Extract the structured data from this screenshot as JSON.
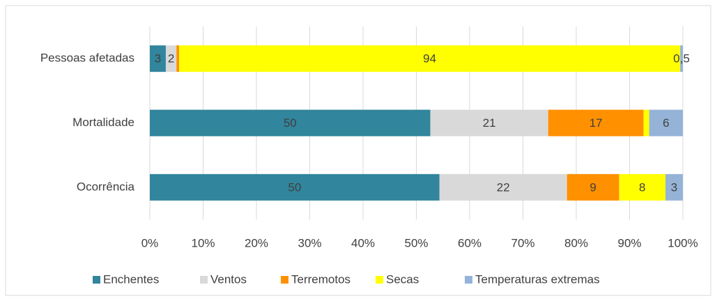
{
  "chart_data": {
    "type": "bar",
    "orientation": "horizontal",
    "stacked": "percent",
    "categories": [
      "Pessoas afetadas",
      "Mortalidade",
      "Ocorrência"
    ],
    "series": [
      {
        "name": "Enchentes",
        "color": "#31859c",
        "values": [
          3,
          50,
          50
        ]
      },
      {
        "name": "Ventos",
        "color": "#d9d9d9",
        "values": [
          2,
          21,
          22
        ]
      },
      {
        "name": "Terremotos",
        "color": "#ff9000",
        "values": [
          0.5,
          17,
          9
        ],
        "value_labels": [
          "0,5",
          "17",
          "9"
        ]
      },
      {
        "name": "Secas",
        "color": "#ffff00",
        "values": [
          94,
          1,
          8
        ]
      },
      {
        "name": "Temperaturas extremas",
        "color": "#95b3d7",
        "values": [
          0.5,
          6,
          3
        ],
        "value_labels": [
          "0,5",
          "6",
          "3"
        ]
      }
    ],
    "xlim": [
      0,
      100
    ],
    "xticks": [
      {
        "value": 0,
        "label": "0%"
      },
      {
        "value": 10,
        "label": "10%"
      },
      {
        "value": 20,
        "label": "20%"
      },
      {
        "value": 30,
        "label": "30%"
      },
      {
        "value": 40,
        "label": "40%"
      },
      {
        "value": 50,
        "label": "50%"
      },
      {
        "value": 60,
        "label": "60%"
      },
      {
        "value": 70,
        "label": "70%"
      },
      {
        "value": 80,
        "label": "80%"
      },
      {
        "value": 90,
        "label": "90%"
      },
      {
        "value": 100,
        "label": "100%"
      }
    ],
    "grid": true,
    "legend": "bottom"
  }
}
